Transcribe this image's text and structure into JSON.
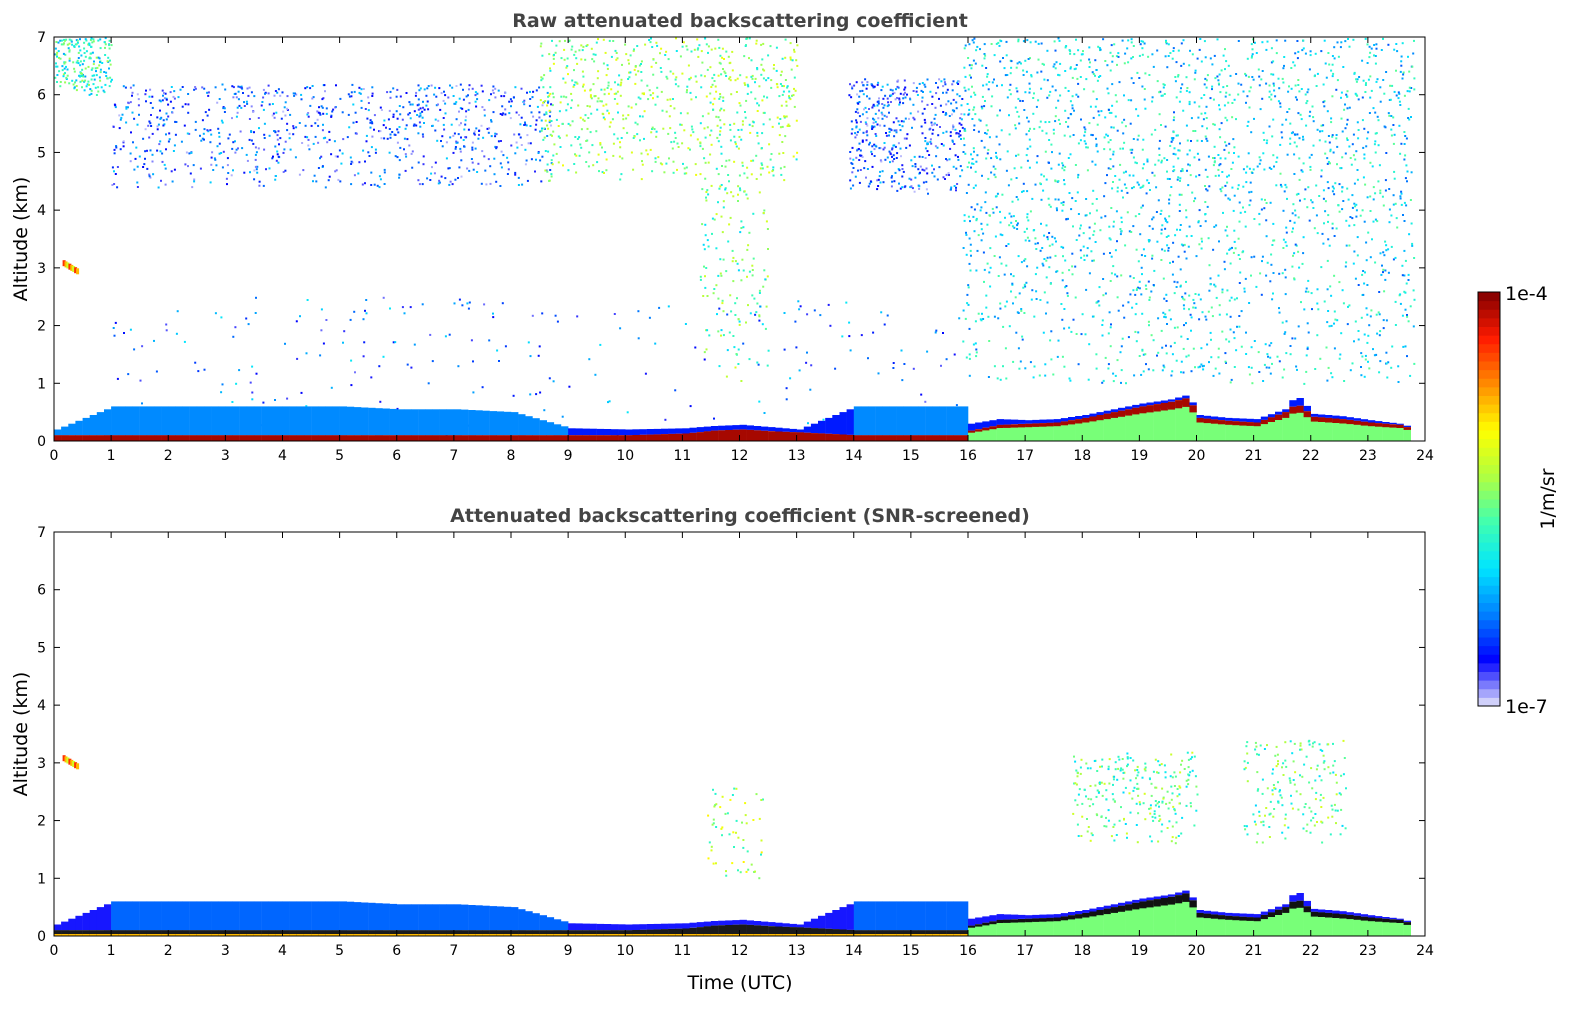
{
  "chart_data": [
    {
      "type": "heatmap",
      "title": "Raw attenuated backscattering coefficient",
      "xlabel": "",
      "ylabel": "Altitude (km)",
      "xlim": [
        0,
        24
      ],
      "ylim": [
        0,
        7
      ],
      "xticks": [
        "0",
        "1",
        "2",
        "3",
        "4",
        "5",
        "6",
        "7",
        "8",
        "9",
        "10",
        "11",
        "12",
        "13",
        "14",
        "15",
        "16",
        "17",
        "18",
        "19",
        "20",
        "21",
        "22",
        "23",
        "24"
      ],
      "yticks": [
        "0",
        "1",
        "2",
        "3",
        "4",
        "5",
        "6",
        "7"
      ],
      "screened": false
    },
    {
      "type": "heatmap",
      "title": "Attenuated backscattering coefficient (SNR-screened)",
      "xlabel": "Time (UTC)",
      "ylabel": "Altitude (km)",
      "xlim": [
        0,
        24
      ],
      "ylim": [
        0,
        7
      ],
      "xticks": [
        "0",
        "1",
        "2",
        "3",
        "4",
        "5",
        "6",
        "7",
        "8",
        "9",
        "10",
        "11",
        "12",
        "13",
        "14",
        "15",
        "16",
        "17",
        "18",
        "19",
        "20",
        "21",
        "22",
        "23",
        "24"
      ],
      "yticks": [
        "0",
        "1",
        "2",
        "3",
        "4",
        "5",
        "6",
        "7"
      ],
      "screened": true
    }
  ],
  "profile": {
    "time_utc": [
      0,
      1,
      2,
      3,
      4,
      5,
      6,
      7,
      8,
      9,
      10,
      11,
      11.5,
      12,
      12.5,
      13,
      14,
      15,
      15.9,
      16,
      16.5,
      17,
      17.5,
      18,
      18.5,
      19,
      19.5,
      19.8,
      20,
      20.5,
      21,
      21.5,
      21.7,
      22,
      22.5,
      23,
      23.5,
      23.75
    ],
    "dense_layer_top_km": [
      0.1,
      0.1,
      0.1,
      0.1,
      0.1,
      0.1,
      0.1,
      0.1,
      0.1,
      0.1,
      0.1,
      0.13,
      0.18,
      0.2,
      0.17,
      0.15,
      0.1,
      0.1,
      0.1,
      0.18,
      0.28,
      0.3,
      0.32,
      0.4,
      0.5,
      0.6,
      0.68,
      0.75,
      0.4,
      0.35,
      0.32,
      0.5,
      0.65,
      0.42,
      0.38,
      0.32,
      0.28,
      0.2
    ],
    "aerosol_top_km": [
      0.2,
      0.6,
      0.6,
      0.6,
      0.6,
      0.6,
      0.55,
      0.55,
      0.5,
      0.22,
      0.2,
      0.22,
      0.26,
      0.28,
      0.24,
      0.2,
      0.6,
      0.6,
      0.6,
      0.3,
      0.38,
      0.36,
      0.38,
      0.45,
      0.55,
      0.65,
      0.72,
      0.8,
      0.45,
      0.4,
      0.38,
      0.55,
      0.8,
      0.47,
      0.43,
      0.36,
      0.3,
      0.23
    ]
  },
  "features": [
    {
      "t0": 1.0,
      "t1": 8.7,
      "z0": 4.4,
      "z1": 6.2,
      "log_beta": -6.5,
      "density": 900,
      "panel": "raw"
    },
    {
      "t0": 0.0,
      "t1": 1.0,
      "z0": 6.0,
      "z1": 7.0,
      "log_beta": -5.8,
      "density": 200,
      "panel": "raw"
    },
    {
      "t0": 8.5,
      "t1": 13.0,
      "z0": 4.5,
      "z1": 7.0,
      "log_beta": -5.5,
      "density": 700,
      "panel": "raw"
    },
    {
      "t0": 11.3,
      "t1": 12.5,
      "z0": 1.0,
      "z1": 4.5,
      "log_beta": -5.6,
      "density": 150,
      "panel": "raw"
    },
    {
      "t0": 13.9,
      "t1": 15.9,
      "z0": 4.3,
      "z1": 6.3,
      "log_beta": -6.5,
      "density": 450,
      "panel": "raw"
    },
    {
      "t0": 15.9,
      "t1": 23.8,
      "z0": 1.0,
      "z1": 7.0,
      "log_beta": -6.0,
      "density": 2200,
      "panel": "raw"
    },
    {
      "t0": 1.0,
      "t1": 16.0,
      "z0": 0.0,
      "z1": 2.5,
      "log_beta": -6.4,
      "density": 250,
      "panel": "raw"
    },
    {
      "t0": 17.8,
      "t1": 20.0,
      "z0": 1.6,
      "z1": 3.2,
      "log_beta": -5.6,
      "density": 250,
      "panel": "screened"
    },
    {
      "t0": 20.8,
      "t1": 22.6,
      "z0": 1.6,
      "z1": 3.4,
      "log_beta": -5.6,
      "density": 180,
      "panel": "screened"
    },
    {
      "t0": 11.4,
      "t1": 12.4,
      "z0": 1.0,
      "z1": 2.6,
      "log_beta": -5.4,
      "density": 60,
      "panel": "screened"
    }
  ],
  "plume": {
    "t0": 0.15,
    "t1": 0.42,
    "z_start": 3.08,
    "z_end": 2.92,
    "log_beta": -4.4
  },
  "colorbar": {
    "label": "1/m/sr",
    "min_label": "1e-7",
    "max_label": "1e-4",
    "min_log": -7,
    "max_log": -4,
    "scale": "log",
    "colors": [
      "#e6e6fa",
      "#0000ff",
      "#0080ff",
      "#00e5ff",
      "#40ffb0",
      "#b0ff40",
      "#ffff00",
      "#ff8c00",
      "#ff1a00",
      "#800000"
    ]
  }
}
